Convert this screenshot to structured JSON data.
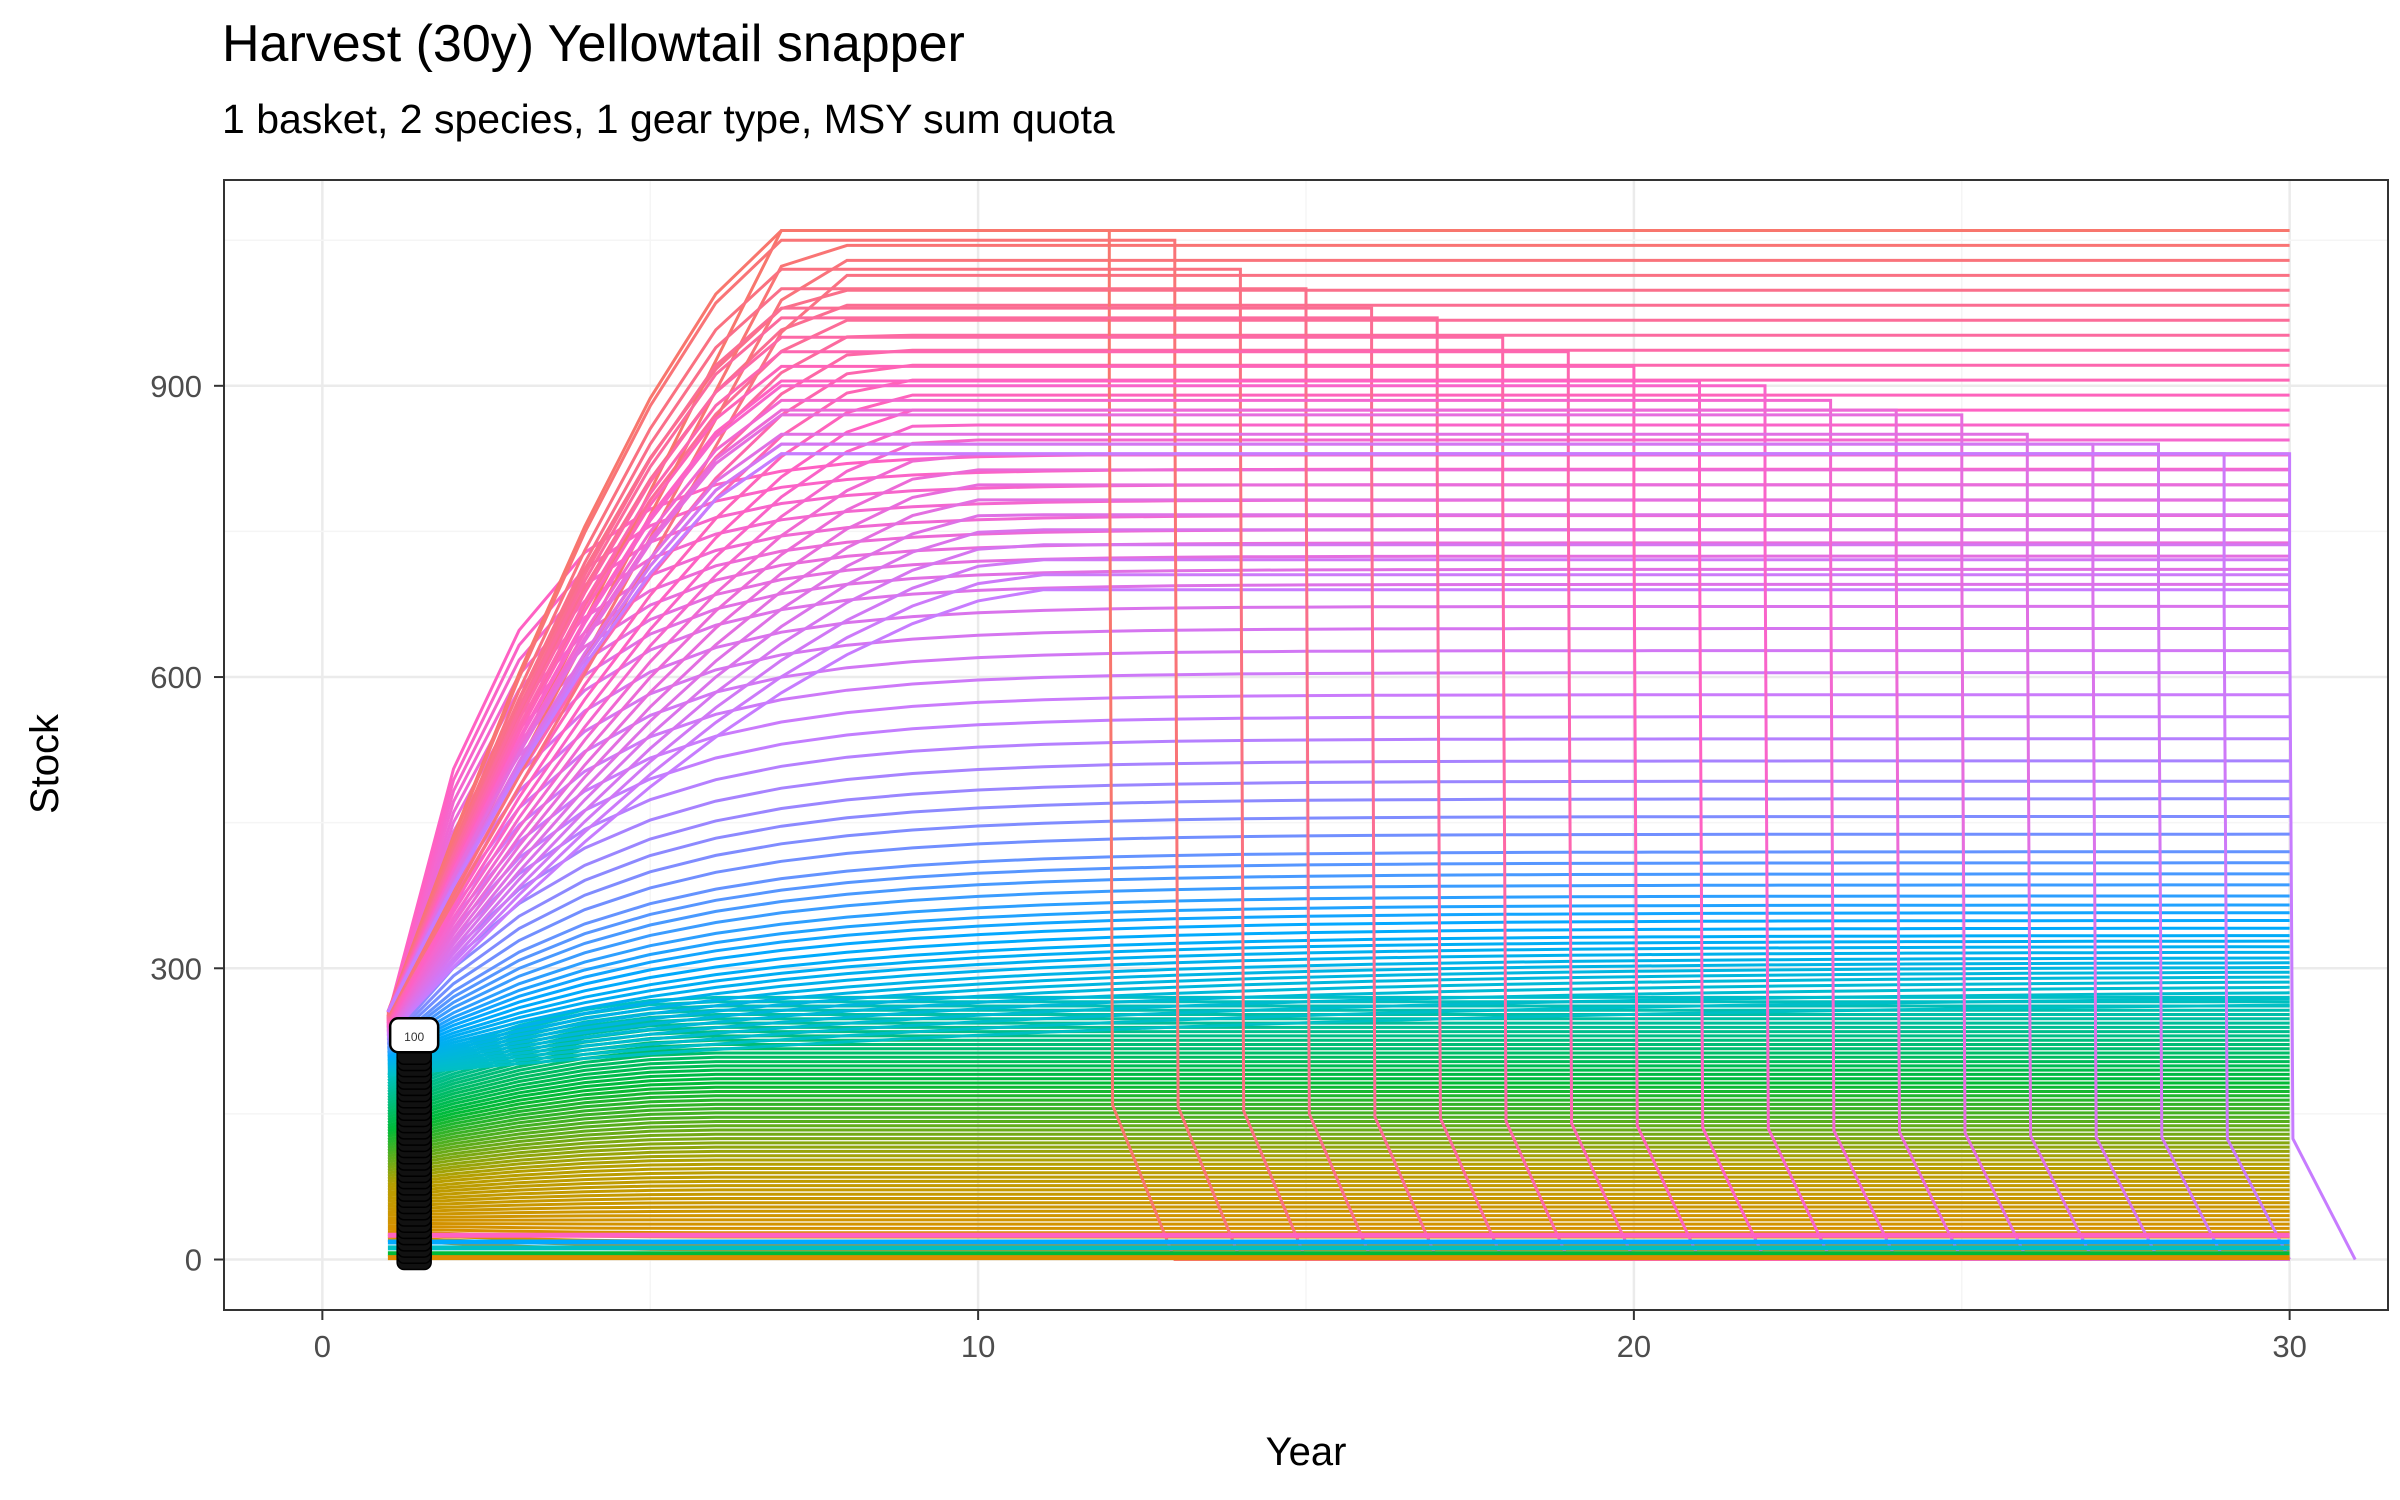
{
  "chart_data": {
    "type": "line",
    "title": "Harvest (30y) Yellowtail snapper",
    "subtitle": "1 basket, 2 species, 1 gear type, MSY sum quota",
    "xlabel": "Year",
    "ylabel": "Stock",
    "xlim": [
      -1.5,
      31.5
    ],
    "ylim": [
      -52,
      1112
    ],
    "x_ticks": [
      0,
      10,
      20,
      30
    ],
    "y_ticks": [
      0,
      300,
      600,
      900
    ],
    "grid": true,
    "legend": "none",
    "start_year": 1,
    "end_year": 30,
    "ramp_end_year": 7,
    "plateau_peak": 1060,
    "high_band_upper": 1060,
    "high_band_lower": 690,
    "spread_family": {
      "start_values": [
        255,
        243,
        232,
        221,
        210,
        200,
        190
      ],
      "final_values": [
        830,
        760,
        700,
        600,
        500,
        420,
        370,
        335,
        310,
        290,
        270
      ],
      "low_band_top": 270,
      "low_band_bottom": 10
    },
    "collapse_family": {
      "collapse_years": [
        12,
        13,
        14,
        15,
        16,
        17,
        18,
        19,
        20,
        21,
        22,
        23,
        24,
        25,
        26,
        27,
        28,
        29,
        30
      ],
      "plateau_values": [
        1060,
        1050,
        1020,
        1000,
        980,
        970,
        950,
        935,
        920,
        905,
        900,
        885,
        875,
        870,
        850,
        840,
        840,
        830,
        830
      ]
    },
    "floor_lines": [
      25,
      18,
      12,
      6,
      2
    ],
    "label_marker": {
      "x": 1.4,
      "y_top": 230,
      "y_bottom": 0,
      "text": "100"
    },
    "colors": {
      "start": "#F8766D",
      "mid_magenta": "#FF61C3",
      "blue": "#00A9FF",
      "teal": "#00BFC4",
      "green": "#00BA38",
      "olive": "#B79F00",
      "orange": "#DE8C00",
      "violet": "#C77CFF",
      "grid_major": "#EBEBEB",
      "grid_minor": "#F5F5F5",
      "panel_border": "#333333",
      "tick_text": "#4D4D4D"
    }
  }
}
